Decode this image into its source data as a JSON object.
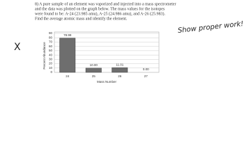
{
  "question": {
    "lines": [
      "8) A pure sample of an element was vaporized and injected into a mass spectrometer",
      "and the data was plotted on the graph below. The mass values for the isotopes",
      "were found to be: A-24 (23.985 amu), A-25 (24.986 amu), and A-26 (25.983).",
      "Find the average atomic mass and identify the element."
    ]
  },
  "handwriting": {
    "mark": "X",
    "note": "Show proper work!"
  },
  "chart_data": {
    "type": "bar",
    "categories": [
      "24",
      "25",
      "26",
      "27"
    ],
    "values": [
      78.99,
      10.0,
      11.01,
      0.0
    ],
    "value_labels": [
      "78.99",
      "10.00",
      "11.01",
      "0.00"
    ],
    "color": "#6e6e6e",
    "ylim": [
      0,
      90
    ],
    "yticks": [
      0,
      10,
      20,
      30,
      40,
      50,
      60,
      70,
      80,
      90
    ],
    "y_label": "Percent Abundance",
    "x_label": "Mass Number",
    "grid": true
  }
}
